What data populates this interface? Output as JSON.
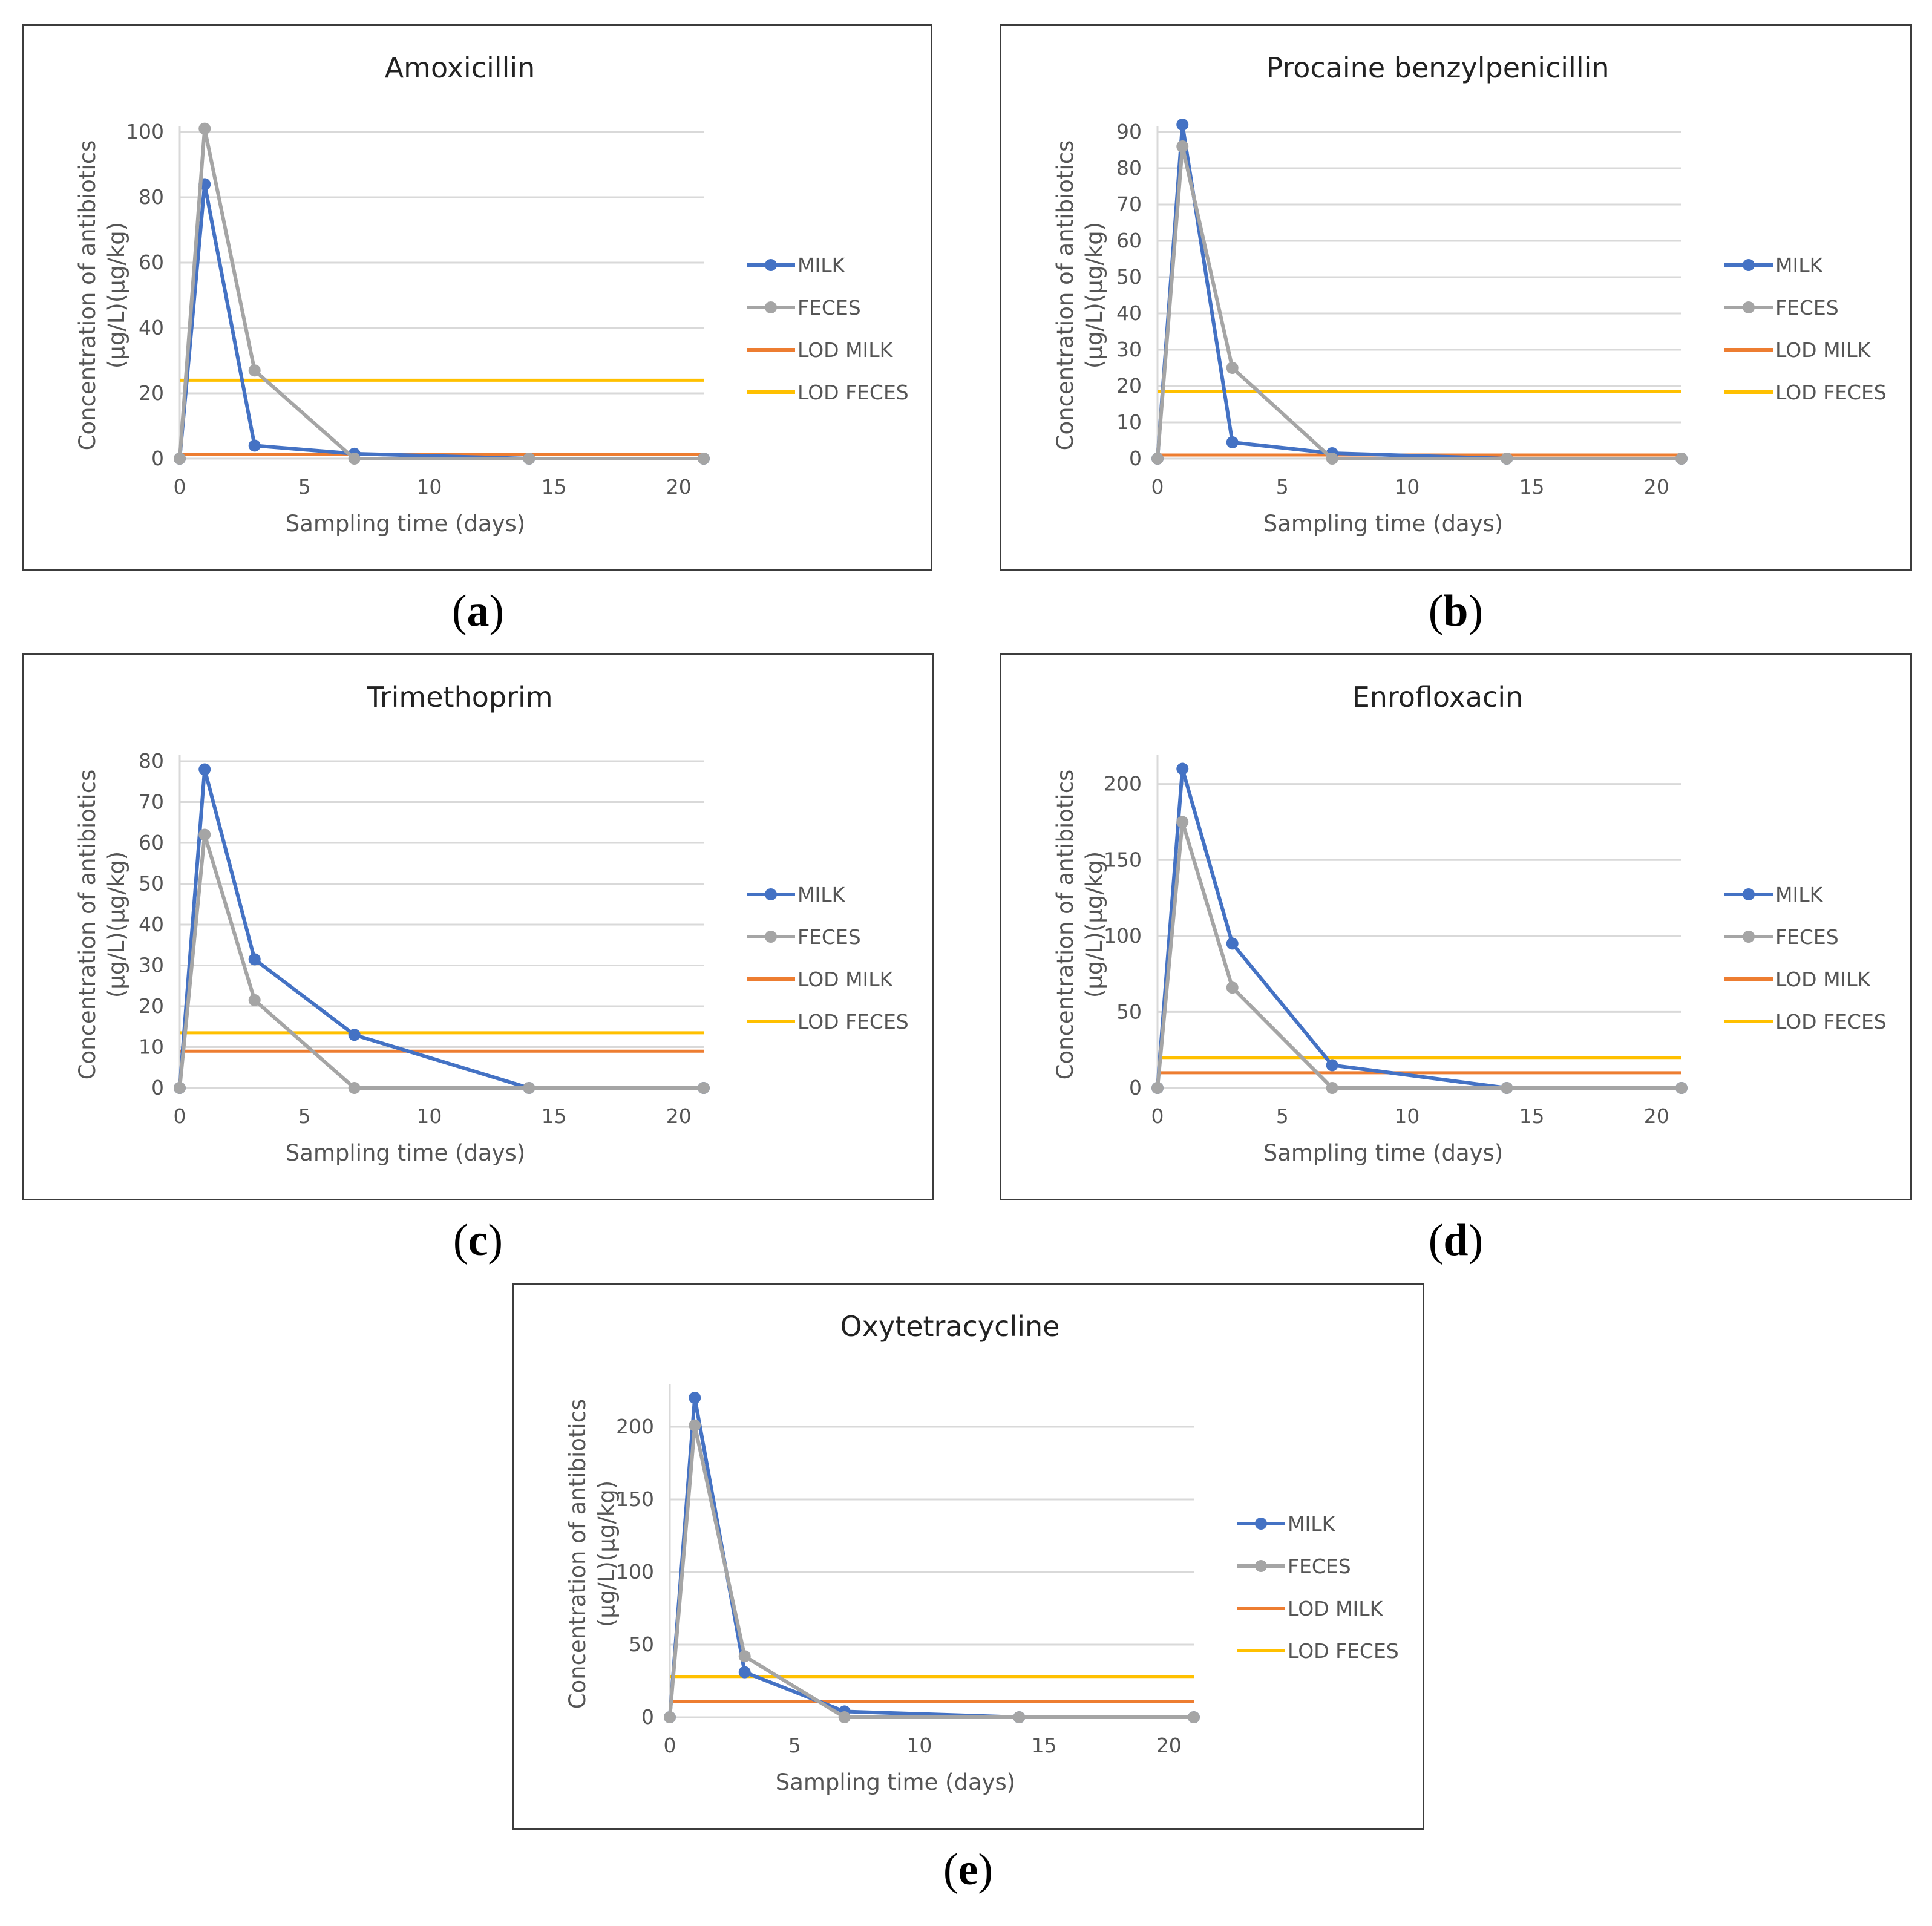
{
  "colors": {
    "milk": "#4472C4",
    "feces": "#A5A5A5",
    "lod_milk": "#ED7D31",
    "lod_feces": "#FFC000",
    "grid": "#d9d9d9"
  },
  "chart_data": [
    {
      "type": "line",
      "panel_label": "a",
      "title": "Amoxicillin",
      "xlabel": "Sampling time (days)",
      "ylabel_line1": "Concentration of antibiotics",
      "ylabel_line2": "(µg/L)(µg/kg)",
      "x": [
        0,
        1,
        3,
        7,
        14,
        21
      ],
      "xlim": [
        0,
        21
      ],
      "xticks": [
        0,
        5,
        10,
        15,
        20
      ],
      "ylim": [
        0,
        100
      ],
      "yticks": [
        0,
        20,
        40,
        60,
        80,
        100
      ],
      "series": [
        {
          "name": "MILK",
          "values": [
            0,
            84,
            4,
            1.5,
            0,
            0
          ]
        },
        {
          "name": "FECES",
          "values": [
            0,
            101,
            27,
            0,
            0,
            0
          ]
        }
      ],
      "lod": [
        {
          "name": "LOD MILK",
          "value": 1.2
        },
        {
          "name": "LOD FECES",
          "value": 24
        }
      ]
    },
    {
      "type": "line",
      "panel_label": "b",
      "title": "Procaine benzylpenicillin",
      "xlabel": "Sampling time (days)",
      "ylabel_line1": "Concentration of antibiotics",
      "ylabel_line2": "(µg/L)(µg/kg)",
      "x": [
        0,
        1,
        3,
        7,
        14,
        21
      ],
      "xlim": [
        0,
        21
      ],
      "xticks": [
        0,
        5,
        10,
        15,
        20
      ],
      "ylim": [
        0,
        90
      ],
      "yticks": [
        0,
        10,
        20,
        30,
        40,
        50,
        60,
        70,
        80,
        90
      ],
      "series": [
        {
          "name": "MILK",
          "values": [
            0,
            92,
            4.5,
            1.5,
            0,
            0
          ]
        },
        {
          "name": "FECES",
          "values": [
            0,
            86,
            25,
            0,
            0,
            0
          ]
        }
      ],
      "lod": [
        {
          "name": "LOD MILK",
          "value": 1
        },
        {
          "name": "LOD FECES",
          "value": 18.5
        }
      ]
    },
    {
      "type": "line",
      "panel_label": "c",
      "title": "Trimethoprim",
      "xlabel": "Sampling time (days)",
      "ylabel_line1": "Concentration of antibiotics",
      "ylabel_line2": "(µg/L)(µg/kg)",
      "x": [
        0,
        1,
        3,
        7,
        14,
        21
      ],
      "xlim": [
        0,
        21
      ],
      "xticks": [
        0,
        5,
        10,
        15,
        20
      ],
      "ylim": [
        0,
        80
      ],
      "yticks": [
        0,
        10,
        20,
        30,
        40,
        50,
        60,
        70,
        80
      ],
      "series": [
        {
          "name": "MILK",
          "values": [
            0,
            78,
            31.5,
            13,
            0,
            0
          ]
        },
        {
          "name": "FECES",
          "values": [
            0,
            62,
            21.5,
            0,
            0,
            0
          ]
        }
      ],
      "lod": [
        {
          "name": "LOD MILK",
          "value": 9
        },
        {
          "name": "LOD FECES",
          "value": 13.5
        }
      ]
    },
    {
      "type": "line",
      "panel_label": "d",
      "title": "Enrofloxacin",
      "xlabel": "Sampling time (days)",
      "ylabel_line1": "Concentration of antibiotics",
      "ylabel_line2": "(µg/L)(µg/kg)",
      "x": [
        0,
        1,
        3,
        7,
        14,
        21
      ],
      "xlim": [
        0,
        21
      ],
      "xticks": [
        0,
        5,
        10,
        15,
        20
      ],
      "ylim": [
        0,
        215
      ],
      "yticks": [
        0,
        50,
        100,
        150,
        200
      ],
      "series": [
        {
          "name": "MILK",
          "values": [
            0,
            210,
            95,
            15,
            0,
            0
          ]
        },
        {
          "name": "FECES",
          "values": [
            0,
            175,
            66,
            0,
            0,
            0
          ]
        }
      ],
      "lod": [
        {
          "name": "LOD MILK",
          "value": 10
        },
        {
          "name": "LOD FECES",
          "value": 20
        }
      ]
    },
    {
      "type": "line",
      "panel_label": "e",
      "title": "Oxytetracycline",
      "xlabel": "Sampling time (days)",
      "ylabel_line1": "Concentration of antibiotics",
      "ylabel_line2": "(µg/L)(µg/kg)",
      "x": [
        0,
        1,
        3,
        7,
        14,
        21
      ],
      "xlim": [
        0,
        21
      ],
      "xticks": [
        0,
        5,
        10,
        15,
        20
      ],
      "ylim": [
        0,
        225
      ],
      "yticks": [
        0,
        50,
        100,
        150,
        200
      ],
      "series": [
        {
          "name": "MILK",
          "values": [
            0,
            220,
            31,
            4,
            0,
            0
          ]
        },
        {
          "name": "FECES",
          "values": [
            0,
            201,
            42,
            0,
            0,
            0
          ]
        }
      ],
      "lod": [
        {
          "name": "LOD MILK",
          "value": 11
        },
        {
          "name": "LOD FECES",
          "value": 28
        }
      ]
    }
  ]
}
